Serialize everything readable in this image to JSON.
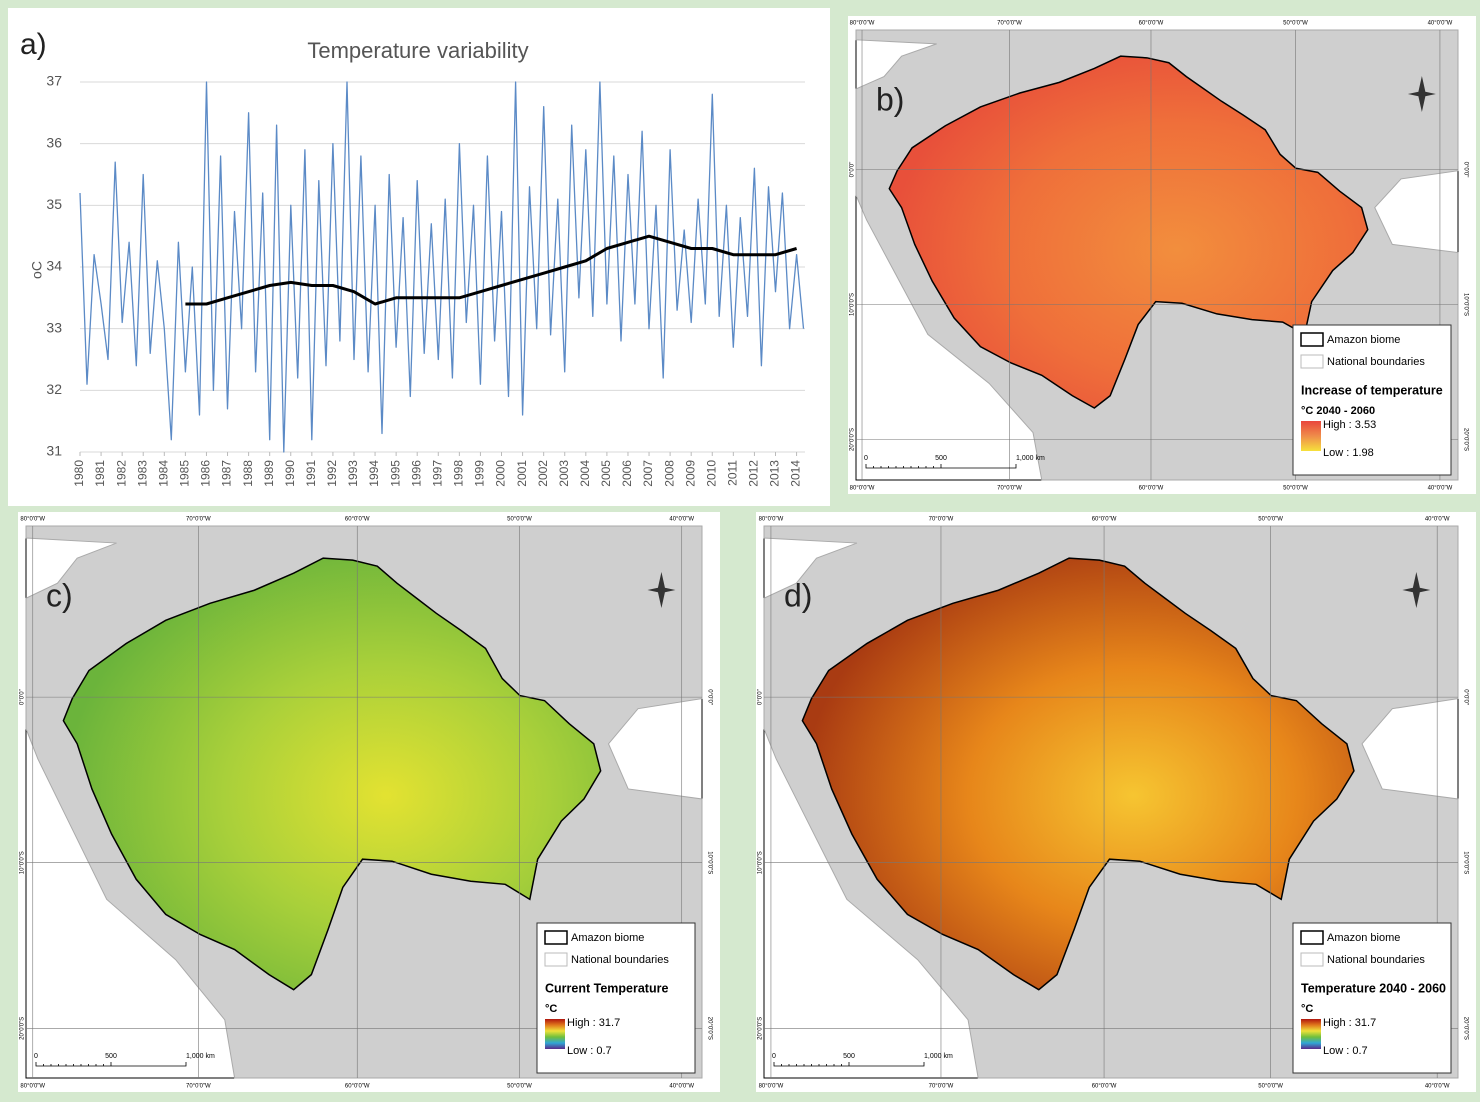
{
  "chart_data": {
    "type": "line",
    "title": "Temperature variability",
    "panel_label": "a)",
    "y_label": "oC",
    "xlim": [
      1980,
      2014.4
    ],
    "xticks": [
      1980,
      1981,
      1982,
      1983,
      1984,
      1985,
      1986,
      1987,
      1988,
      1989,
      1990,
      1991,
      1992,
      1993,
      1994,
      1995,
      1996,
      1997,
      1998,
      1999,
      2000,
      2001,
      2002,
      2003,
      2004,
      2005,
      2006,
      2007,
      2008,
      2009,
      2010,
      2011,
      2012,
      2013,
      2014
    ],
    "ylim": [
      31,
      37
    ],
    "yticks": [
      31,
      32,
      33,
      34,
      35,
      36,
      37
    ],
    "grid": true,
    "series": [
      {
        "color": "#5b8ac6",
        "width": 1.3,
        "x": [
          1980,
          1980.33,
          1980.67,
          1981,
          1981.33,
          1981.67,
          1982,
          1982.33,
          1982.67,
          1983,
          1983.33,
          1983.67,
          1984,
          1984.33,
          1984.67,
          1985,
          1985.33,
          1985.67,
          1986,
          1986.33,
          1986.67,
          1987,
          1987.33,
          1987.67,
          1988,
          1988.33,
          1988.67,
          1989,
          1989.33,
          1989.67,
          1990,
          1990.33,
          1990.67,
          1991,
          1991.33,
          1991.67,
          1992,
          1992.33,
          1992.67,
          1993,
          1993.33,
          1993.67,
          1994,
          1994.33,
          1994.67,
          1995,
          1995.33,
          1995.67,
          1996,
          1996.33,
          1996.67,
          1997,
          1997.33,
          1997.67,
          1998,
          1998.33,
          1998.67,
          1999,
          1999.33,
          1999.67,
          2000,
          2000.33,
          2000.67,
          2001,
          2001.33,
          2001.67,
          2002,
          2002.33,
          2002.67,
          2003,
          2003.33,
          2003.67,
          2004,
          2004.33,
          2004.67,
          2005,
          2005.33,
          2005.67,
          2006,
          2006.33,
          2006.67,
          2007,
          2007.33,
          2007.67,
          2008,
          2008.33,
          2008.67,
          2009,
          2009.33,
          2009.67,
          2010,
          2010.33,
          2010.67,
          2011,
          2011.33,
          2011.67,
          2012,
          2012.33,
          2012.67,
          2013,
          2013.33,
          2013.67,
          2014,
          2014.33
        ],
        "values": [
          35.2,
          32.1,
          34.2,
          33.4,
          32.5,
          35.7,
          33.1,
          34.4,
          32.4,
          35.5,
          32.6,
          34.1,
          33.0,
          31.2,
          34.4,
          32.3,
          34.0,
          31.6,
          37.0,
          32.0,
          35.8,
          31.7,
          34.9,
          33.0,
          36.5,
          32.3,
          35.2,
          31.2,
          36.3,
          31.0,
          35.0,
          32.2,
          35.9,
          31.2,
          35.4,
          32.4,
          36.0,
          32.8,
          37.0,
          32.5,
          35.8,
          32.3,
          35.0,
          31.3,
          35.5,
          32.7,
          34.8,
          31.9,
          35.4,
          32.6,
          34.7,
          32.5,
          35.1,
          32.2,
          36.0,
          33.1,
          35.0,
          32.1,
          35.8,
          32.8,
          34.9,
          31.9,
          37.0,
          31.6,
          35.3,
          33.0,
          36.6,
          32.9,
          35.1,
          32.3,
          36.3,
          33.5,
          35.9,
          33.2,
          37.0,
          33.4,
          35.8,
          32.8,
          35.5,
          33.4,
          36.2,
          33.0,
          35.0,
          32.2,
          35.9,
          33.3,
          34.6,
          33.1,
          35.1,
          33.4,
          36.8,
          33.2,
          35.0,
          32.7,
          34.8,
          33.2,
          35.6,
          32.4,
          35.3,
          33.6,
          35.2,
          33.0,
          34.2,
          33.0
        ]
      },
      {
        "color": "#000000",
        "width": 3,
        "x": [
          1985,
          1986,
          1987,
          1988,
          1989,
          1990,
          1991,
          1992,
          1993,
          1994,
          1995,
          1996,
          1997,
          1998,
          1999,
          2000,
          2001,
          2002,
          2003,
          2004,
          2005,
          2006,
          2007,
          2008,
          2009,
          2010,
          2011,
          2012,
          2013,
          2014
        ],
        "values": [
          33.4,
          33.4,
          33.5,
          33.6,
          33.7,
          33.75,
          33.7,
          33.7,
          33.6,
          33.4,
          33.5,
          33.5,
          33.5,
          33.5,
          33.6,
          33.7,
          33.8,
          33.9,
          34.0,
          34.1,
          34.3,
          34.4,
          34.5,
          34.4,
          34.3,
          34.3,
          34.2,
          34.2,
          34.2,
          34.3
        ]
      }
    ]
  },
  "maps": [
    {
      "label": "b)",
      "legend": {
        "items": [
          "Amazon biome",
          "National boundaries"
        ],
        "title": "Increase of temperature",
        "unit": "°C 2040 - 2060",
        "high": "High : 3.53",
        "low": "Low : 1.98"
      },
      "scale": [
        "0",
        "500",
        "1,000 km"
      ],
      "lon": [
        "80°0'0\"W",
        "70°0'0\"W",
        "60°0'0\"W",
        "50°0'0\"W",
        "40°0'0\"W"
      ],
      "lat": [
        "0°0'0\"",
        "10°0'0\"S",
        "20°0'0\"S"
      ]
    },
    {
      "label": "c)",
      "legend": {
        "items": [
          "Amazon biome",
          "National boundaries"
        ],
        "title": "Current Temperature",
        "unit": "°C",
        "high": "High : 31.7",
        "low": "Low : 0.7"
      },
      "scale": [
        "0",
        "500",
        "1,000 km"
      ],
      "lon": [
        "80°0'0\"W",
        "70°0'0\"W",
        "60°0'0\"W",
        "50°0'0\"W",
        "40°0'0\"W"
      ],
      "lat": [
        "0°0'0\"",
        "10°0'0\"S",
        "20°0'0\"S"
      ]
    },
    {
      "label": "d)",
      "legend": {
        "items": [
          "Amazon biome",
          "National boundaries"
        ],
        "title": "Temperature 2040 - 2060",
        "unit": "°C",
        "high": "High : 31.7",
        "low": "Low : 0.7"
      },
      "scale": [
        "0",
        "500",
        "1,000 km"
      ],
      "lon": [
        "80°0'0\"W",
        "70°0'0\"W",
        "60°0'0\"W",
        "50°0'0\"W",
        "40°0'0\"W"
      ],
      "lat": [
        "0°0'0\"",
        "10°0'0\"S",
        "20°0'0\"S"
      ]
    }
  ]
}
